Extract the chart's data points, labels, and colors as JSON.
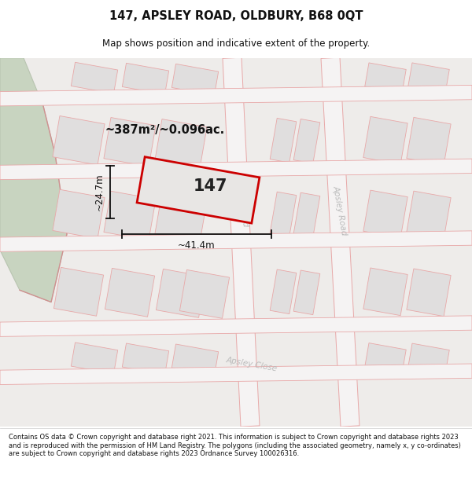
{
  "title_line1": "147, APSLEY ROAD, OLDBURY, B68 0QT",
  "title_line2": "Map shows position and indicative extent of the property.",
  "area_label": "~387m²/~0.096ac.",
  "plot_number": "147",
  "width_label": "~41.4m",
  "height_label": "~24.7m",
  "footer_text": "Contains OS data © Crown copyright and database right 2021. This information is subject to Crown copyright and database rights 2023 and is reproduced with the permission of HM Land Registry. The polygons (including the associated geometry, namely x, y co-ordinates) are subject to Crown copyright and database rights 2023 Ordnance Survey 100026316.",
  "map_bg": "#eeecea",
  "block_fill": "#e0dede",
  "block_edge": "#e8a8a8",
  "road_fill": "#f5f3f3",
  "road_edge": "#e8a8a8",
  "green_fill": "#c8d4c0",
  "green_edge": "#b8c4b0",
  "plot_fill": "#e8e6e4",
  "plot_edge": "#cc0000",
  "dim_color": "#111111",
  "street_color": "#bbbbbb",
  "street_font": 7.5
}
